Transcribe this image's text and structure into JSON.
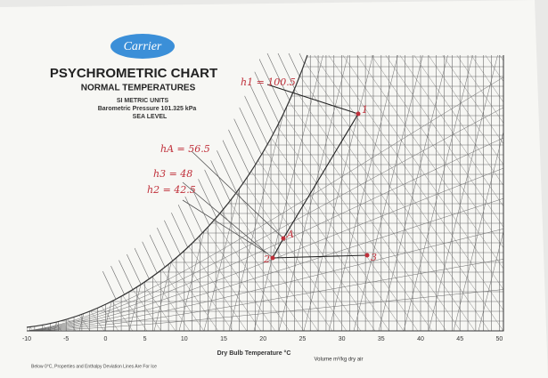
{
  "logo": "Carrier",
  "header": {
    "title": "PSYCHROMETRIC CHART",
    "subtitle": "NORMAL TEMPERATURES",
    "units": "SI METRIC UNITS",
    "pressure": "Barometric Pressure 101.325 kPa",
    "level": "SEA LEVEL"
  },
  "annotations": [
    "h1 = 100.5",
    "hA = 56.5",
    "h3 = 48",
    "h2 = 42.5"
  ],
  "points": [
    "1",
    "A",
    "2",
    "3"
  ],
  "x_axis": {
    "ticks": [
      "-10",
      "-5",
      "0",
      "5",
      "10",
      "15",
      "20",
      "25",
      "30",
      "35",
      "40",
      "45",
      "50"
    ],
    "label": "Dry Bulb Temperature °C"
  },
  "volume_label": "Volume m³/kg dry air",
  "footnote": "Below 0°C, Properties and Enthalpy Deviation Lines Are For Ice"
}
